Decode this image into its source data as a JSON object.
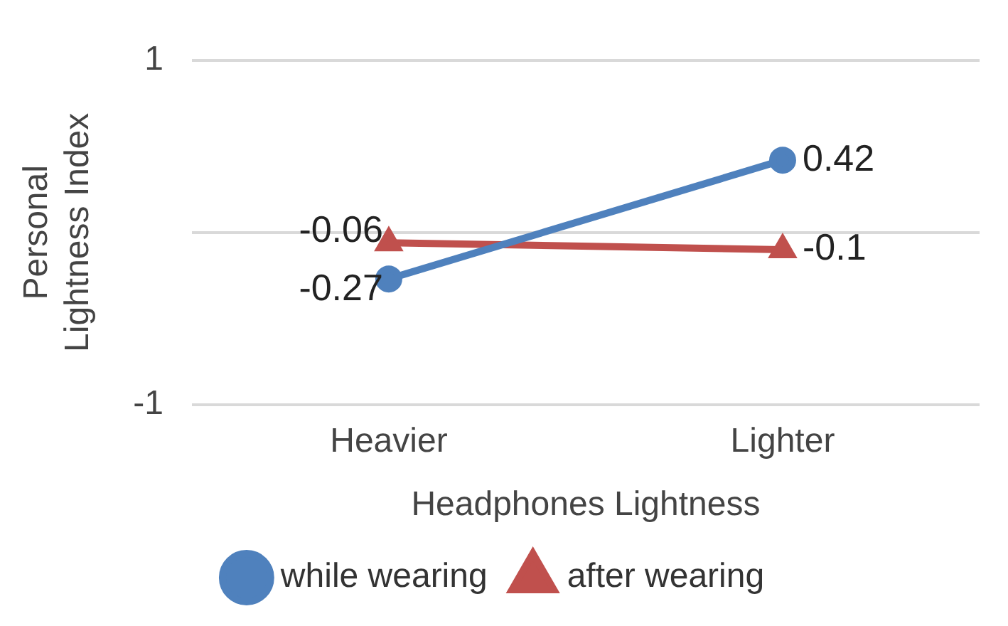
{
  "chart_data": {
    "type": "line",
    "xlabel": "Headphones Lightness",
    "ylabel": "Personal Lightness Index",
    "categories": [
      "Heavier",
      "Lighter"
    ],
    "series": [
      {
        "name": "while wearing",
        "color": "#4f81bd",
        "values": [
          -0.27,
          0.42
        ],
        "marker": "circle"
      },
      {
        "name": "after wearing",
        "color": "#c0504d",
        "values": [
          -0.06,
          -0.1
        ],
        "marker": "triangle"
      }
    ],
    "ylim": [
      -1,
      1
    ],
    "yticks": [
      -1,
      {
        "value": 0,
        "label": null
      },
      1
    ],
    "grid": "y",
    "legend": "bottom",
    "data_labels": true,
    "line_style": "solid"
  }
}
